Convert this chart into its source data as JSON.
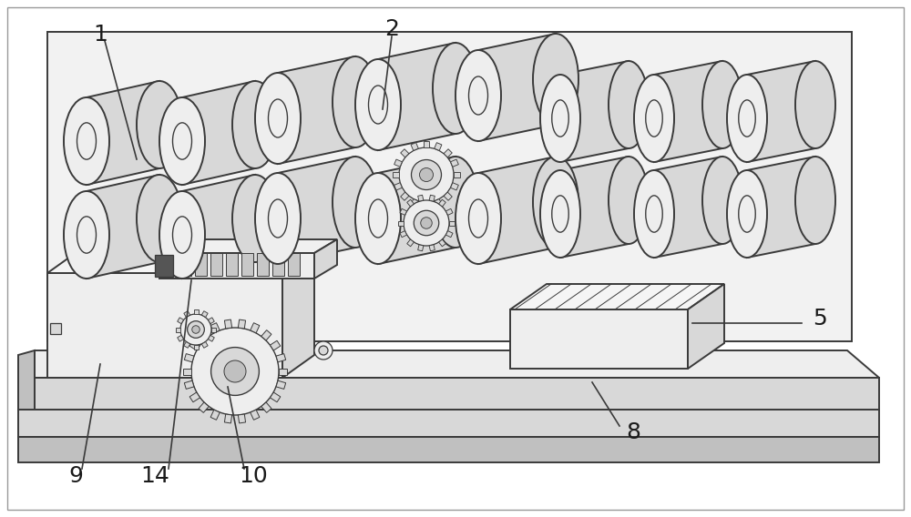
{
  "bg_color": "#ffffff",
  "line_color": "#3a3a3a",
  "label_color": "#1a1a1a",
  "fill_light": "#eeeeee",
  "fill_mid": "#d8d8d8",
  "fill_dark": "#c0c0c0",
  "fill_darker": "#a8a8a8",
  "label_fontsize": 18,
  "figsize": [
    10.0,
    5.68
  ],
  "dpi": 100,
  "lw_main": 1.4,
  "lw_thin": 0.9
}
